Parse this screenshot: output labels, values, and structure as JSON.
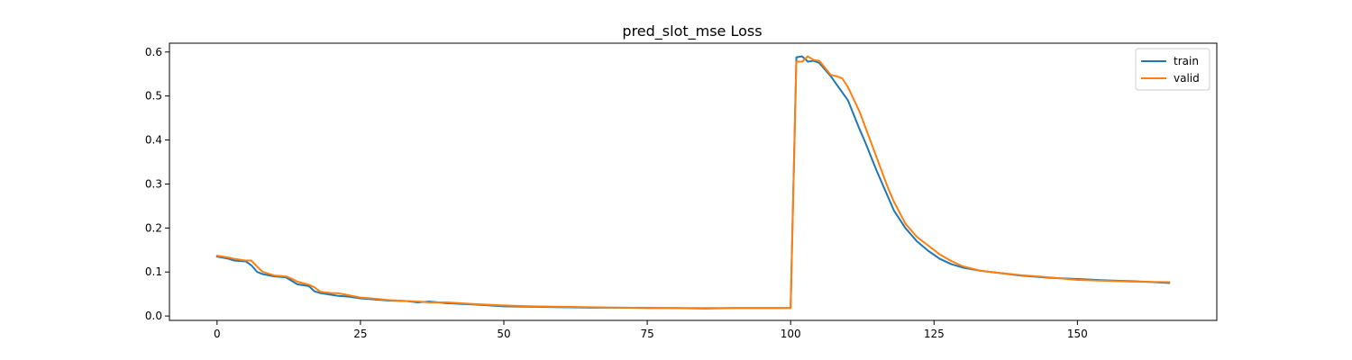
{
  "chart_data": {
    "type": "line",
    "title": "pred_slot_mse Loss",
    "xlabel": "",
    "ylabel": "",
    "xlim": [
      -8.3,
      174.3
    ],
    "ylim": [
      -0.01,
      0.62
    ],
    "xticks": [
      0,
      25,
      50,
      75,
      100,
      125,
      150
    ],
    "yticks": [
      0.0,
      0.1,
      0.2,
      0.3,
      0.4,
      0.5,
      0.6
    ],
    "grid": false,
    "legend_position": "top-right",
    "series": [
      {
        "name": "train",
        "color": "#1f77b4",
        "x": [
          0,
          2,
          3,
          5,
          6,
          7,
          8,
          10,
          12,
          13,
          14,
          16,
          17,
          18,
          20,
          21,
          23,
          25,
          27,
          30,
          33,
          35,
          37,
          40,
          45,
          50,
          55,
          60,
          65,
          70,
          75,
          80,
          85,
          90,
          95,
          99,
          100,
          101,
          102,
          103,
          104,
          105,
          107,
          110,
          112,
          113,
          115,
          117,
          118,
          120,
          122,
          124,
          126,
          128,
          130,
          133,
          135,
          140,
          145,
          150,
          155,
          160,
          166
        ],
        "y": [
          0.135,
          0.13,
          0.126,
          0.124,
          0.115,
          0.1,
          0.095,
          0.09,
          0.088,
          0.08,
          0.072,
          0.068,
          0.056,
          0.052,
          0.048,
          0.046,
          0.044,
          0.04,
          0.038,
          0.035,
          0.034,
          0.031,
          0.033,
          0.029,
          0.026,
          0.022,
          0.021,
          0.02,
          0.019,
          0.019,
          0.018,
          0.018,
          0.017,
          0.018,
          0.018,
          0.018,
          0.018,
          0.588,
          0.59,
          0.578,
          0.58,
          0.575,
          0.545,
          0.49,
          0.425,
          0.395,
          0.33,
          0.27,
          0.24,
          0.2,
          0.17,
          0.148,
          0.13,
          0.118,
          0.11,
          0.103,
          0.1,
          0.092,
          0.087,
          0.084,
          0.081,
          0.079,
          0.075
        ]
      },
      {
        "name": "valid",
        "color": "#ff7f0e",
        "x": [
          0,
          2,
          3,
          5,
          6,
          7,
          8,
          10,
          12,
          13,
          14,
          16,
          17,
          18,
          20,
          21,
          23,
          25,
          27,
          30,
          33,
          35,
          37,
          40,
          45,
          50,
          55,
          60,
          65,
          70,
          75,
          80,
          85,
          90,
          95,
          99,
          100,
          101,
          102,
          103,
          104,
          105,
          107,
          108,
          109,
          110,
          112,
          113,
          115,
          117,
          118,
          120,
          122,
          124,
          126,
          128,
          130,
          133,
          135,
          140,
          145,
          150,
          155,
          160,
          166
        ],
        "y": [
          0.137,
          0.133,
          0.13,
          0.126,
          0.126,
          0.112,
          0.1,
          0.092,
          0.09,
          0.085,
          0.078,
          0.071,
          0.065,
          0.055,
          0.052,
          0.052,
          0.047,
          0.042,
          0.04,
          0.036,
          0.034,
          0.033,
          0.031,
          0.031,
          0.027,
          0.024,
          0.022,
          0.021,
          0.02,
          0.019,
          0.019,
          0.018,
          0.018,
          0.018,
          0.018,
          0.018,
          0.018,
          0.578,
          0.578,
          0.59,
          0.582,
          0.58,
          0.548,
          0.545,
          0.54,
          0.52,
          0.465,
          0.43,
          0.36,
          0.29,
          0.26,
          0.21,
          0.18,
          0.16,
          0.14,
          0.125,
          0.113,
          0.103,
          0.1,
          0.093,
          0.088,
          0.082,
          0.08,
          0.078,
          0.077
        ]
      }
    ]
  }
}
